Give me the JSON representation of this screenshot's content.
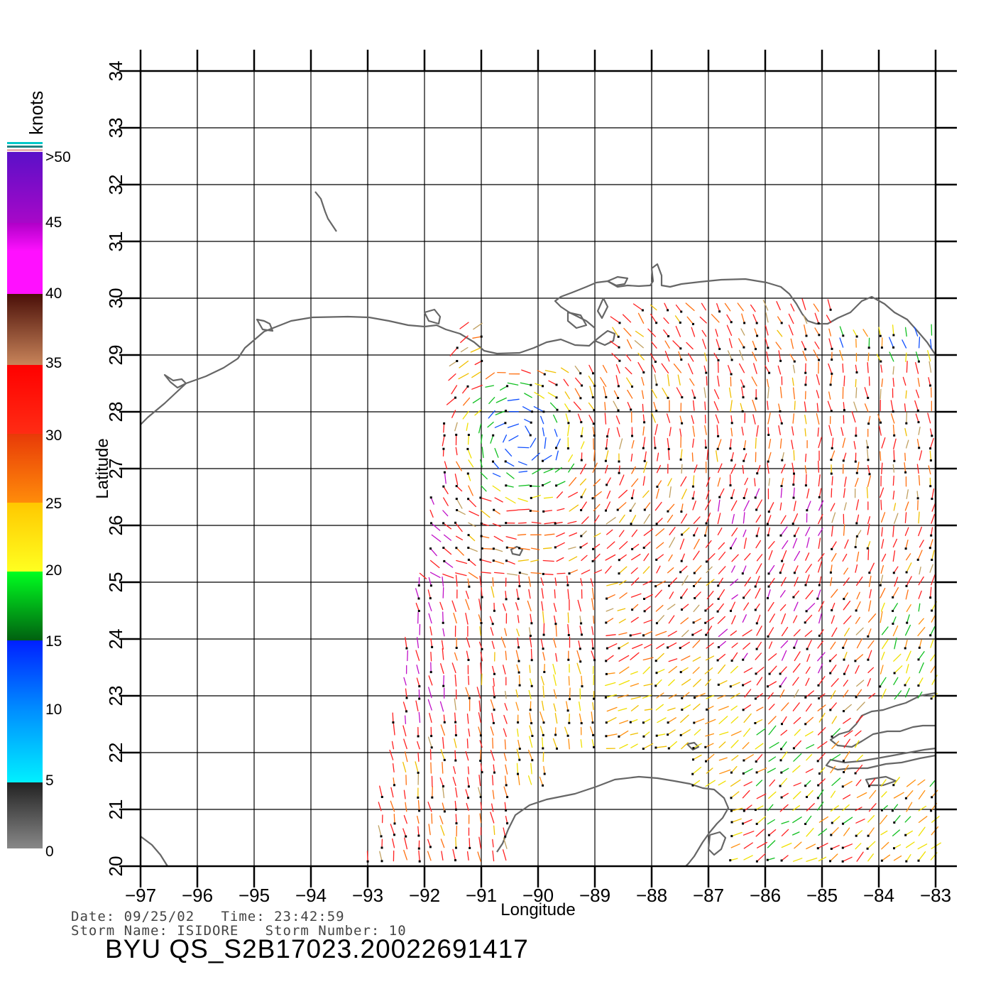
{
  "map": {
    "x_axis_title": "Longitude",
    "y_axis_title": "Latitude",
    "lon_ticks": [
      -97,
      -96,
      -95,
      -94,
      -93,
      -92,
      -91,
      -90,
      -89,
      -88,
      -87,
      -86,
      -85,
      -84,
      -83
    ],
    "lat_ticks": [
      20,
      21,
      22,
      23,
      24,
      25,
      26,
      27,
      28,
      29,
      30,
      31,
      32,
      33,
      34
    ],
    "lon_range": [
      -97,
      -83
    ],
    "lat_range": [
      20,
      34
    ],
    "grid": true,
    "coastline_color": "#666666",
    "vector_field": "QuikSCAT wind vectors (colored by speed)"
  },
  "legend": {
    "unit_label": "knots",
    "labels": [
      ">50",
      "45",
      "40",
      "35",
      "30",
      "25",
      "20",
      "15",
      "10",
      "5",
      "0"
    ],
    "bands": [
      {
        "range": "45-50",
        "colors": [
          "#5a10c8",
          "#a808c8"
        ]
      },
      {
        "range": "40-45",
        "colors": [
          "#b000c8",
          "#ff10ff"
        ]
      },
      {
        "range": "35-40",
        "colors": [
          "#4a0f08",
          "#c8845a"
        ]
      },
      {
        "range": "30-35",
        "colors": [
          "#ff0000",
          "#ff2c14"
        ]
      },
      {
        "range": "25-30",
        "colors": [
          "#e83a08",
          "#ff8c0a"
        ]
      },
      {
        "range": "20-25",
        "colors": [
          "#ffc800",
          "#ffff20"
        ]
      },
      {
        "range": "15-20",
        "colors": [
          "#00ff20",
          "#006010"
        ]
      },
      {
        "range": "10-15",
        "colors": [
          "#0020ff",
          "#0090ff"
        ]
      },
      {
        "range": "5-10",
        "colors": [
          "#0090ff",
          "#00f0ff"
        ]
      },
      {
        "range": "0-5",
        "colors": [
          "#222222",
          "#888888"
        ]
      }
    ]
  },
  "info": {
    "date_line": "Date: 09/25/02   Time: 23:42:59",
    "storm_line": "Storm Name: ISIDORE   Storm Number: 10",
    "product_id": "BYU QS_S2B17023.20022691417"
  }
}
